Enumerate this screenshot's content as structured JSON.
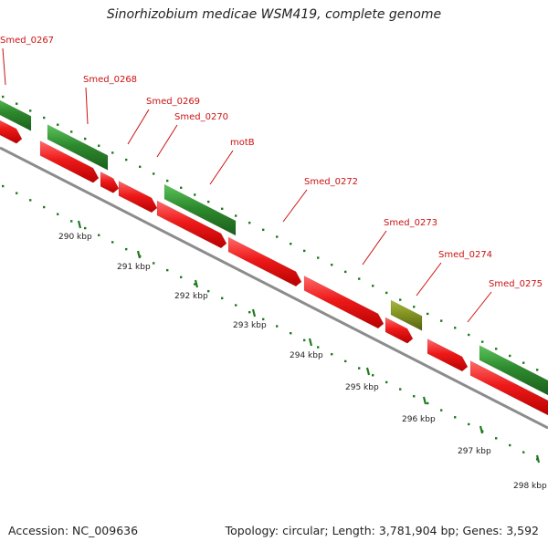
{
  "title": "Sinorhizobium medicae WSM419, complete genome",
  "footer": {
    "accession": "Accession: NC_009636",
    "summary": "Topology: circular; Length: 3,781,904 bp; Genes: 3,592"
  },
  "colors": {
    "forward_gene": "#2e8b2e",
    "reverse_gene": "#e81515",
    "highlight_gene": "#7f8f1f",
    "backbone": "#8c8c8c",
    "label": "#cc1111",
    "tick": "#1e7a1e"
  },
  "gene_labels": [
    "Smed_0267",
    "Smed_0268",
    "Smed_0269",
    "Smed_0270",
    "motB",
    "Smed_0272",
    "Smed_0273",
    "Smed_0274",
    "Smed_0275"
  ],
  "scale_labels": [
    "290 kbp",
    "291 kbp",
    "292 kbp",
    "293 kbp",
    "294 kbp",
    "295 kbp",
    "296 kbp",
    "297 kbp",
    "298 kbp"
  ]
}
